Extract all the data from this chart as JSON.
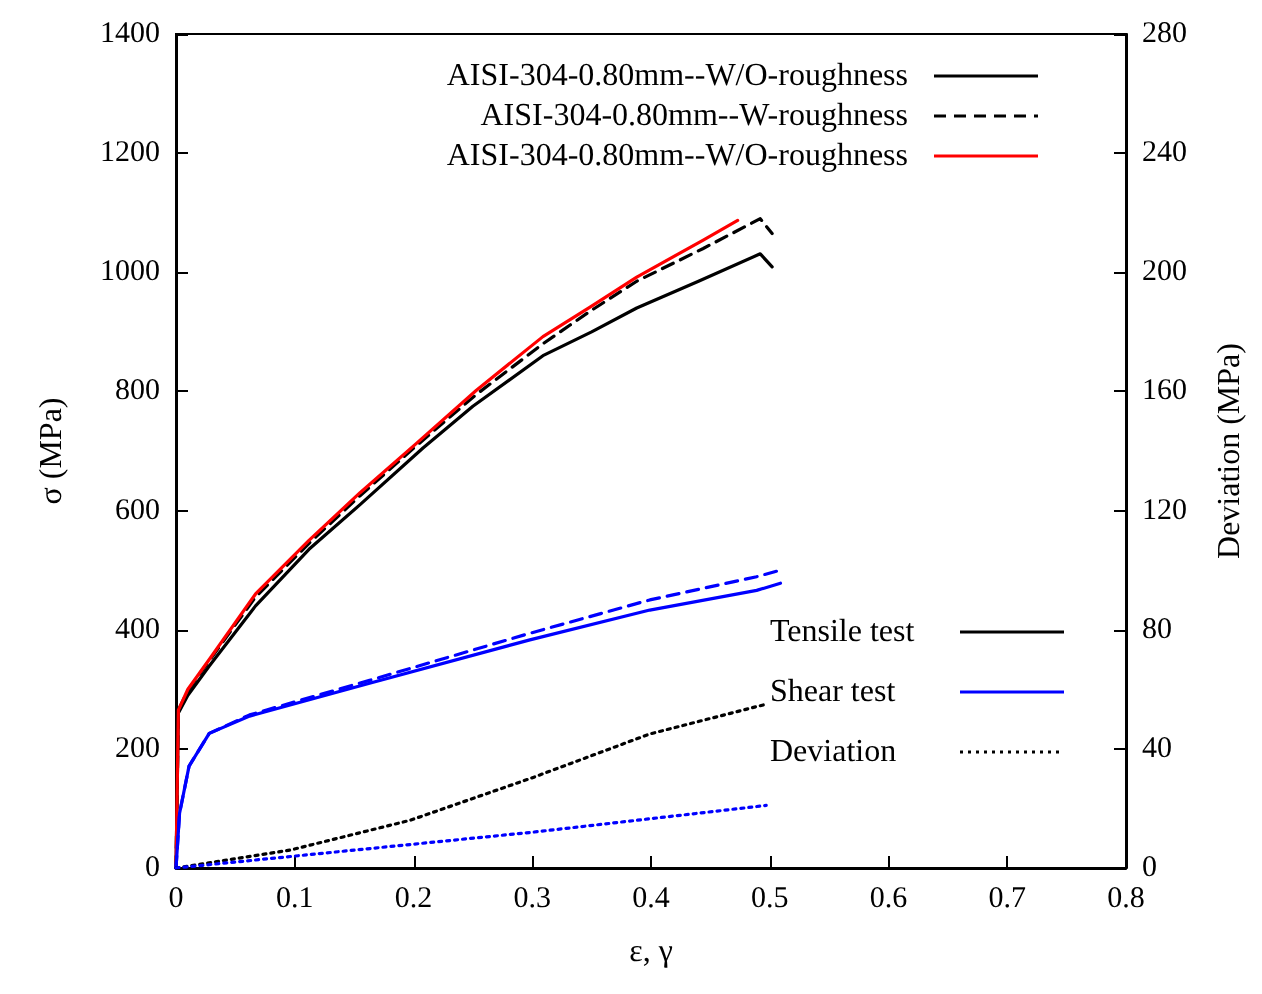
{
  "chart_data": {
    "type": "line",
    "xlabel": "ε, γ",
    "ylabel": "σ (MPa)",
    "y2label": "Deviation (MPa)",
    "xlim": [
      0,
      0.8
    ],
    "xticks": [
      0,
      0.1,
      0.2,
      0.3,
      0.4,
      0.5,
      0.6,
      0.7,
      0.8
    ],
    "ylim": [
      0,
      1400
    ],
    "yticks": [
      0,
      200,
      400,
      600,
      800,
      1000,
      1200,
      1400
    ],
    "y2lim": [
      0,
      280
    ],
    "y2ticks": [
      0,
      40,
      80,
      120,
      160,
      200,
      240,
      280
    ],
    "grid": false,
    "legend": "top right",
    "marker": "none",
    "annotations": [
      "Tensile test"
    ],
    "series": [
      {
        "name": "AISI-304-0.80mm--W/O-roughness",
        "color": "#000000",
        "line_style": "solid",
        "x": [
          0,
          0.002,
          0.01,
          0.028,
          0.067,
          0.112,
          0.155,
          0.208,
          0.25,
          0.309,
          0.35,
          0.388,
          0.44,
          0.492,
          0.502
        ],
        "values": [
          0,
          260,
          290,
          339,
          440,
          535,
          610,
          705,
          775,
          860,
          900,
          940,
          985,
          1031,
          1009
        ]
      },
      {
        "name": "AISI-304-0.80mm--W-roughness",
        "color": "#000000",
        "line_style": "dashed",
        "x": [
          0,
          0.002,
          0.01,
          0.028,
          0.067,
          0.112,
          0.155,
          0.202,
          0.253,
          0.309,
          0.349,
          0.388,
          0.444,
          0.492,
          0.502
        ],
        "values": [
          0,
          265,
          298,
          348,
          455,
          545,
          625,
          708,
          795,
          880,
          935,
          985,
          1040,
          1090,
          1065
        ]
      },
      {
        "name": "AISI-304-0.80mm--W/O-roughness",
        "color": "#ff0000",
        "line_style": "solid",
        "x": [
          0,
          0.002,
          0.01,
          0.028,
          0.067,
          0.112,
          0.155,
          0.202,
          0.253,
          0.309,
          0.349,
          0.388,
          0.444,
          0.473
        ],
        "values": [
          0,
          265,
          300,
          350,
          460,
          550,
          630,
          712,
          802,
          892,
          942,
          992,
          1054,
          1087
        ]
      },
      {
        "color": "#0000ff",
        "line_style": "dashed",
        "x": [
          0,
          0.003,
          0.011,
          0.028,
          0.062,
          0.163,
          0.298,
          0.399,
          0.489,
          0.509
        ],
        "values": [
          0,
          92,
          171,
          226,
          257,
          315,
          394,
          450,
          489,
          500
        ]
      },
      {
        "name": "Shear test",
        "color": "#0000ff",
        "line_style": "solid",
        "x": [
          0,
          0.003,
          0.011,
          0.028,
          0.062,
          0.163,
          0.298,
          0.399,
          0.489,
          0.509
        ],
        "values": [
          0,
          92,
          171,
          226,
          255,
          310,
          383,
          433,
          466,
          478
        ]
      },
      {
        "name": "Deviation",
        "color": "#000000",
        "line_style": "dotted",
        "axis": "y2",
        "x": [
          0,
          0.096,
          0.197,
          0.298,
          0.399,
          0.497
        ],
        "values": [
          0,
          6,
          16,
          30,
          45,
          55
        ]
      },
      {
        "color": "#0000ff",
        "line_style": "dotted",
        "axis": "y2",
        "x": [
          0,
          0.1,
          0.2,
          0.3,
          0.497
        ],
        "values": [
          0,
          4,
          8,
          12,
          21
        ]
      }
    ]
  }
}
